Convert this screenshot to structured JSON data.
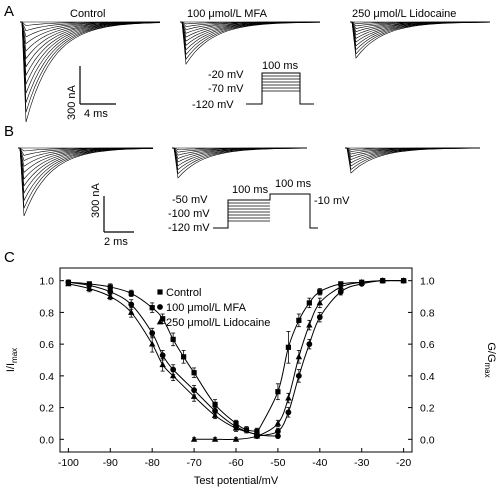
{
  "panels": {
    "A": {
      "letter": "A",
      "conditions": [
        "Control",
        "100 μmol/L MFA",
        "250 μmol/L Lidocaine"
      ],
      "scale_bar": {
        "current": "300 nA",
        "time": "4 ms"
      },
      "protocol": {
        "duration": "100 ms",
        "levels": [
          "-20 mV",
          "-70 mV",
          "-120 mV"
        ]
      }
    },
    "B": {
      "letter": "B",
      "scale_bar": {
        "current": "300 nA",
        "time": "2 ms"
      },
      "protocol": {
        "duration_1": "100 ms",
        "duration_2": "100 ms",
        "levels": [
          "-50 mV",
          "-100 mV",
          "-120 mV"
        ],
        "test_level": "-10 mV"
      }
    },
    "C": {
      "letter": "C"
    }
  },
  "chart_data": {
    "type": "scatter",
    "xlabel": "Test potential/mV",
    "ylabel_left": "I/I",
    "ylabel_left_sub": "max",
    "ylabel_right": "G/G",
    "ylabel_right_sub": "max",
    "xlim": [
      -102,
      -18
    ],
    "ylim": [
      -0.08,
      1.08
    ],
    "xticks": [
      -100,
      -90,
      -80,
      -70,
      -60,
      -50,
      -40,
      -30,
      -20
    ],
    "yticks": [
      0.0,
      0.2,
      0.4,
      0.6,
      0.8,
      1.0
    ],
    "ytick_labels": [
      "0.0",
      "0.2",
      "0.4",
      "0.6",
      "0.8",
      "1.0"
    ],
    "legend": {
      "placement": "top-left"
    },
    "series": [
      {
        "name": "Control",
        "marker": "square",
        "curve": "inactivation",
        "x": [
          -100,
          -95,
          -90,
          -85,
          -80,
          -77.5,
          -75,
          -72.5,
          -70,
          -65,
          -60,
          -57.5,
          -55
        ],
        "y": [
          0.99,
          0.98,
          0.96,
          0.92,
          0.83,
          0.76,
          0.63,
          0.52,
          0.42,
          0.22,
          0.1,
          0.06,
          0.05
        ],
        "err": [
          0.01,
          0.01,
          0.02,
          0.02,
          0.03,
          0.03,
          0.04,
          0.04,
          0.03,
          0.03,
          0.02,
          0.02,
          0.02
        ]
      },
      {
        "name": "Control",
        "marker": "square",
        "curve": "activation",
        "x": [
          -55,
          -50,
          -47.5,
          -45,
          -42.5,
          -40,
          -35,
          -30,
          -25,
          -20
        ],
        "y": [
          0.04,
          0.3,
          0.58,
          0.75,
          0.86,
          0.93,
          0.98,
          0.99,
          1.0,
          1.0
        ],
        "err": [
          0.02,
          0.05,
          0.1,
          0.04,
          0.03,
          0.02,
          0.01,
          0.01,
          0.01,
          0.01
        ]
      },
      {
        "name": "100 μmol/L MFA",
        "marker": "circle",
        "curve": "inactivation",
        "x": [
          -100,
          -95,
          -90,
          -85,
          -80,
          -77.5,
          -75,
          -70,
          -65,
          -60,
          -55,
          -50
        ],
        "y": [
          0.99,
          0.97,
          0.93,
          0.85,
          0.67,
          0.53,
          0.44,
          0.31,
          0.18,
          0.08,
          0.03,
          0.02
        ],
        "err": [
          0.01,
          0.02,
          0.02,
          0.03,
          0.03,
          0.03,
          0.03,
          0.03,
          0.02,
          0.02,
          0.01,
          0.01
        ]
      },
      {
        "name": "100 μmol/L MFA",
        "marker": "circle",
        "curve": "activation",
        "x": [
          -55,
          -50,
          -47.5,
          -45,
          -42.5,
          -40,
          -35,
          -30,
          -25,
          -20
        ],
        "y": [
          0.02,
          0.05,
          0.17,
          0.4,
          0.6,
          0.77,
          0.93,
          0.98,
          1.0,
          1.0
        ],
        "err": [
          0.01,
          0.02,
          0.03,
          0.04,
          0.03,
          0.03,
          0.02,
          0.01,
          0.01,
          0.01
        ]
      },
      {
        "name": "250 μmol/L Lidocaine",
        "marker": "triangle",
        "curve": "inactivation",
        "x": [
          -100,
          -95,
          -90,
          -85,
          -80,
          -77.5,
          -75,
          -70,
          -65,
          -60,
          -55
        ],
        "y": [
          0.98,
          0.95,
          0.9,
          0.8,
          0.6,
          0.47,
          0.4,
          0.27,
          0.15,
          0.07,
          0.03
        ],
        "err": [
          0.01,
          0.02,
          0.02,
          0.03,
          0.05,
          0.04,
          0.03,
          0.03,
          0.02,
          0.02,
          0.01
        ]
      },
      {
        "name": "250 μmol/L Lidocaine",
        "marker": "triangle",
        "curve": "activation",
        "x": [
          -70,
          -65,
          -60,
          -55,
          -50,
          -47.5,
          -45,
          -42.5,
          -40,
          -35,
          -30,
          -25,
          -20
        ],
        "y": [
          0.0,
          0.0,
          0.0,
          0.02,
          0.1,
          0.26,
          0.52,
          0.72,
          0.86,
          0.96,
          0.99,
          1.0,
          1.0
        ],
        "err": [
          0.01,
          0.01,
          0.01,
          0.01,
          0.02,
          0.03,
          0.04,
          0.03,
          0.03,
          0.02,
          0.01,
          0.01,
          0.01
        ]
      }
    ]
  }
}
